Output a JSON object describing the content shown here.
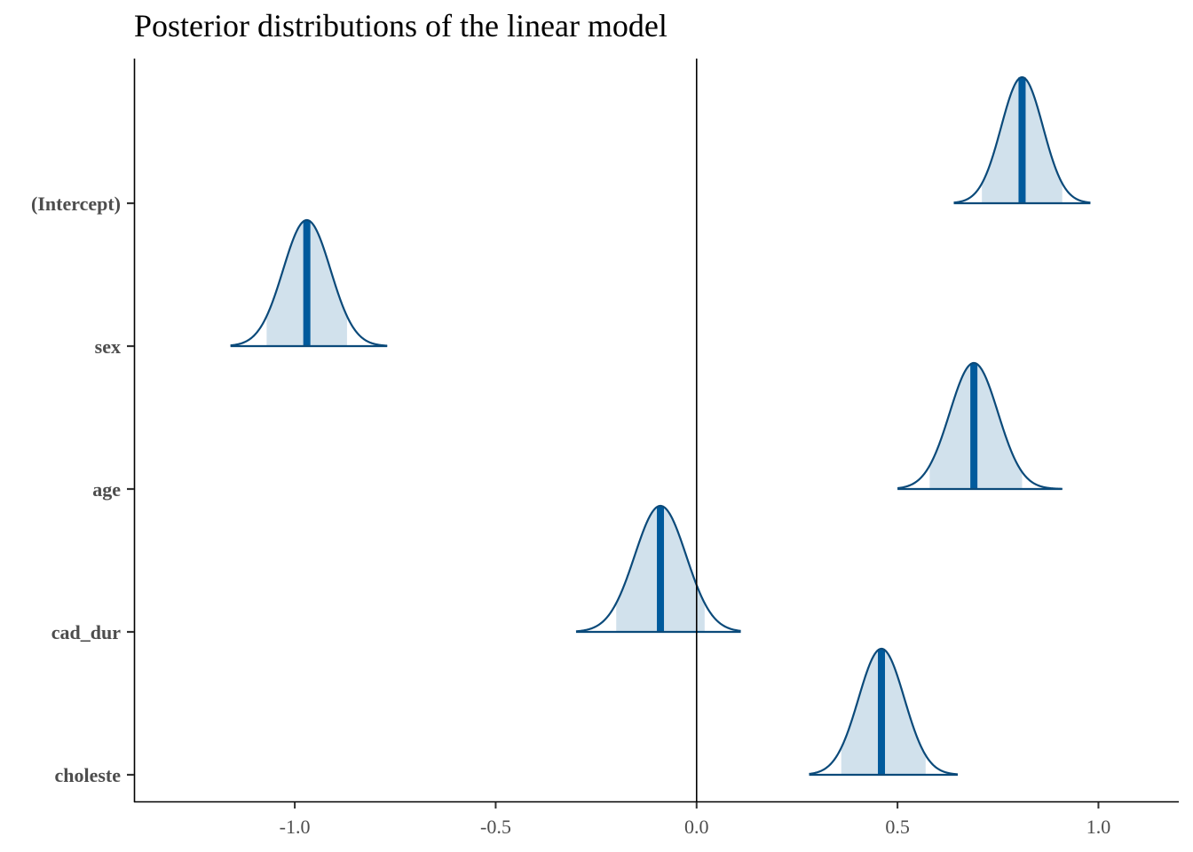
{
  "chart_data": {
    "type": "density-ridges",
    "title": "Posterior distributions of the linear model",
    "xlabel": "",
    "ylabel": "",
    "xlim": [
      -1.4,
      1.2
    ],
    "x_ticks": [
      -1.0,
      -0.5,
      0.0,
      0.5,
      1.0
    ],
    "x_tick_labels": [
      "-1.0",
      "-0.5",
      "0.0",
      "0.5",
      "1.0"
    ],
    "reference_line_x": 0.0,
    "grid": false,
    "colors": {
      "outline": "#0b4a7a",
      "fill": "#d1e1ec",
      "median": "#005a9c",
      "axis": "#000000",
      "tick_label": "#4d4d4d"
    },
    "parameters": [
      {
        "name": "(Intercept)",
        "median": 0.81,
        "sd": 0.052,
        "interval_50": [
          0.71,
          0.91
        ],
        "range": [
          0.64,
          0.98
        ]
      },
      {
        "name": "sex",
        "median": -0.97,
        "sd": 0.059,
        "interval_50": [
          -1.07,
          -0.87
        ],
        "range": [
          -1.16,
          -0.77
        ]
      },
      {
        "name": "age",
        "median": 0.69,
        "sd": 0.06,
        "interval_50": [
          0.58,
          0.81
        ],
        "range": [
          0.5,
          0.91
        ]
      },
      {
        "name": "cad_dur",
        "median": -0.09,
        "sd": 0.064,
        "interval_50": [
          -0.2,
          0.02
        ],
        "range": [
          -0.3,
          0.11
        ]
      },
      {
        "name": "choleste",
        "median": 0.46,
        "sd": 0.057,
        "interval_50": [
          0.36,
          0.57
        ],
        "range": [
          0.28,
          0.65
        ]
      }
    ]
  }
}
